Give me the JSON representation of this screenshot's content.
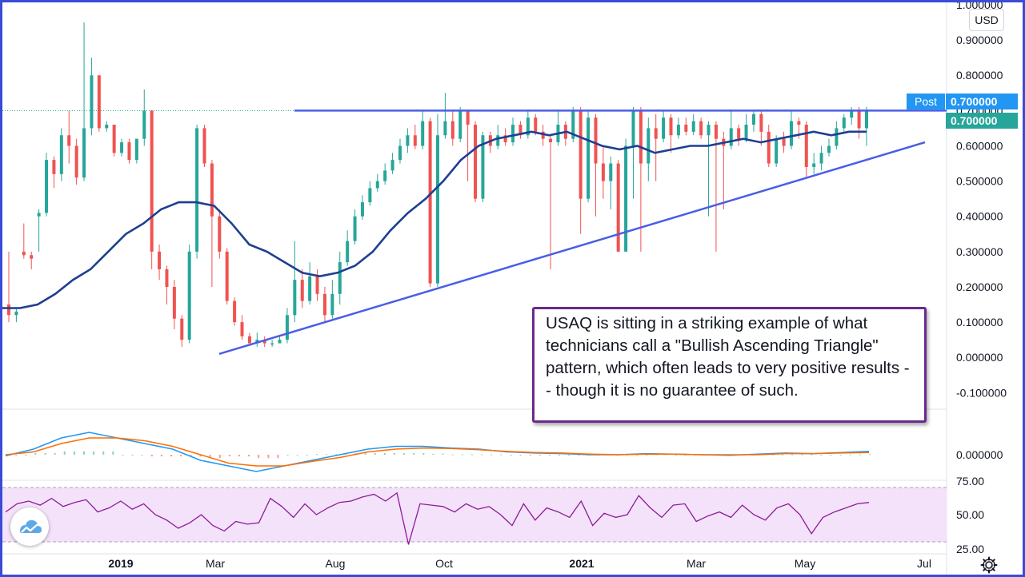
{
  "header": {
    "currency_button": "USD",
    "post_label": "Post",
    "post_price": "0.700000",
    "last_price": "0.700000"
  },
  "annotation": {
    "text": "USAQ is sitting in a striking example of what technicians call a \"Bullish Ascending Triangle\" pattern, which often leads to very positive results -- though it is no guarantee of such."
  },
  "icons": {
    "logo": "tradingview-cloud-logo",
    "settings": "gear-icon"
  },
  "colors": {
    "frame": "#3a4bd8",
    "up_candle": "#26a69a",
    "down_candle": "#ef5350",
    "moving_average": "#1e3f91",
    "trendline": "#4a5ee8",
    "macd_line": "#2196f3",
    "signal_line": "#ff6d00",
    "rsi_line": "#8e1a99",
    "rsi_band": "#f3e2f9"
  },
  "chart_data": [
    {
      "type": "candlestick",
      "title": "",
      "ylim": [
        -0.14,
        1.0
      ],
      "y_ticks": [
        "1.000000",
        "0.900000",
        "0.800000",
        "0.700000",
        "0.600000",
        "0.500000",
        "0.400000",
        "0.300000",
        "0.200000",
        "0.100000",
        "0.000000",
        "-0.100000"
      ],
      "x_ticks": [
        {
          "label": "2019",
          "bold": true
        },
        {
          "label": "Mar",
          "bold": false
        },
        {
          "label": "Aug",
          "bold": false
        },
        {
          "label": "Oct",
          "bold": false
        },
        {
          "label": "2021",
          "bold": true
        },
        {
          "label": "Mar",
          "bold": false
        },
        {
          "label": "May",
          "bold": false
        },
        {
          "label": "Jul",
          "bold": false
        }
      ],
      "resistance_level": 0.7,
      "support_trendline": {
        "start": 0.01,
        "end": 0.61
      },
      "last_price": 0.7,
      "candles": [
        [
          0.15,
          0.12,
          0.3,
          0.1
        ],
        [
          0.12,
          0.13,
          0.14,
          0.1
        ],
        [
          0.3,
          0.29,
          0.38,
          0.28
        ],
        [
          0.29,
          0.28,
          0.3,
          0.25
        ],
        [
          0.4,
          0.41,
          0.42,
          0.3
        ],
        [
          0.41,
          0.56,
          0.58,
          0.4
        ],
        [
          0.56,
          0.52,
          0.57,
          0.48
        ],
        [
          0.52,
          0.63,
          0.65,
          0.5
        ],
        [
          0.63,
          0.6,
          0.7,
          0.55
        ],
        [
          0.6,
          0.51,
          0.62,
          0.49
        ],
        [
          0.51,
          0.65,
          0.95,
          0.5
        ],
        [
          0.65,
          0.8,
          0.85,
          0.63
        ],
        [
          0.8,
          0.65,
          0.8,
          0.64
        ],
        [
          0.65,
          0.66,
          0.67,
          0.64
        ],
        [
          0.66,
          0.58,
          0.66,
          0.57
        ],
        [
          0.58,
          0.61,
          0.62,
          0.57
        ],
        [
          0.61,
          0.56,
          0.62,
          0.55
        ],
        [
          0.56,
          0.62,
          0.62,
          0.55
        ],
        [
          0.62,
          0.7,
          0.76,
          0.6
        ],
        [
          0.7,
          0.3,
          0.7,
          0.25
        ],
        [
          0.3,
          0.25,
          0.32,
          0.22
        ],
        [
          0.25,
          0.2,
          0.26,
          0.15
        ],
        [
          0.2,
          0.11,
          0.22,
          0.08
        ],
        [
          0.11,
          0.05,
          0.12,
          0.03
        ],
        [
          0.05,
          0.3,
          0.32,
          0.04
        ],
        [
          0.3,
          0.65,
          0.66,
          0.28
        ],
        [
          0.65,
          0.55,
          0.66,
          0.54
        ],
        [
          0.55,
          0.4,
          0.56,
          0.2
        ],
        [
          0.4,
          0.3,
          0.42,
          0.28
        ],
        [
          0.3,
          0.16,
          0.31,
          0.15
        ],
        [
          0.16,
          0.1,
          0.17,
          0.09
        ],
        [
          0.1,
          0.06,
          0.12,
          0.05
        ],
        [
          0.06,
          0.04,
          0.07,
          0.04
        ],
        [
          0.04,
          0.05,
          0.07,
          0.03
        ],
        [
          0.05,
          0.04,
          0.06,
          0.03
        ],
        [
          0.04,
          0.04,
          0.05,
          0.03
        ],
        [
          0.04,
          0.05,
          0.06,
          0.04
        ],
        [
          0.05,
          0.12,
          0.14,
          0.04
        ],
        [
          0.12,
          0.22,
          0.33,
          0.1
        ],
        [
          0.22,
          0.16,
          0.25,
          0.14
        ],
        [
          0.16,
          0.23,
          0.27,
          0.15
        ],
        [
          0.23,
          0.18,
          0.25,
          0.16
        ],
        [
          0.18,
          0.12,
          0.2,
          0.1
        ],
        [
          0.12,
          0.18,
          0.22,
          0.11
        ],
        [
          0.18,
          0.27,
          0.3,
          0.15
        ],
        [
          0.27,
          0.33,
          0.36,
          0.26
        ],
        [
          0.33,
          0.4,
          0.42,
          0.32
        ],
        [
          0.4,
          0.44,
          0.46,
          0.39
        ],
        [
          0.44,
          0.48,
          0.5,
          0.43
        ],
        [
          0.48,
          0.5,
          0.52,
          0.47
        ],
        [
          0.5,
          0.53,
          0.55,
          0.49
        ],
        [
          0.53,
          0.56,
          0.58,
          0.52
        ],
        [
          0.56,
          0.6,
          0.62,
          0.55
        ],
        [
          0.6,
          0.63,
          0.65,
          0.58
        ],
        [
          0.63,
          0.6,
          0.66,
          0.59
        ],
        [
          0.6,
          0.67,
          0.7,
          0.59
        ],
        [
          0.67,
          0.21,
          0.68,
          0.2
        ],
        [
          0.21,
          0.63,
          0.69,
          0.2
        ],
        [
          0.63,
          0.67,
          0.75,
          0.62
        ],
        [
          0.67,
          0.62,
          0.7,
          0.6
        ],
        [
          0.62,
          0.7,
          0.71,
          0.61
        ],
        [
          0.7,
          0.66,
          0.7,
          0.5
        ],
        [
          0.66,
          0.45,
          0.67,
          0.44
        ],
        [
          0.45,
          0.63,
          0.64,
          0.44
        ],
        [
          0.63,
          0.6,
          0.64,
          0.58
        ],
        [
          0.6,
          0.63,
          0.66,
          0.59
        ],
        [
          0.63,
          0.61,
          0.65,
          0.6
        ],
        [
          0.61,
          0.66,
          0.68,
          0.6
        ],
        [
          0.66,
          0.63,
          0.67,
          0.62
        ],
        [
          0.63,
          0.68,
          0.7,
          0.62
        ],
        [
          0.68,
          0.64,
          0.69,
          0.63
        ],
        [
          0.64,
          0.62,
          0.66,
          0.6
        ],
        [
          0.62,
          0.61,
          0.63,
          0.25
        ],
        [
          0.61,
          0.66,
          0.7,
          0.6
        ],
        [
          0.66,
          0.62,
          0.67,
          0.6
        ],
        [
          0.62,
          0.7,
          0.71,
          0.61
        ],
        [
          0.7,
          0.45,
          0.71,
          0.35
        ],
        [
          0.45,
          0.68,
          0.7,
          0.44
        ],
        [
          0.68,
          0.55,
          0.69,
          0.4
        ],
        [
          0.55,
          0.5,
          0.6,
          0.45
        ],
        [
          0.5,
          0.55,
          0.57,
          0.42
        ],
        [
          0.55,
          0.3,
          0.56,
          0.3
        ],
        [
          0.3,
          0.6,
          0.62,
          0.3
        ],
        [
          0.6,
          0.7,
          0.71,
          0.45
        ],
        [
          0.7,
          0.55,
          0.71,
          0.3
        ],
        [
          0.55,
          0.65,
          0.68,
          0.5
        ],
        [
          0.65,
          0.62,
          0.69,
          0.5
        ],
        [
          0.62,
          0.68,
          0.7,
          0.61
        ],
        [
          0.68,
          0.63,
          0.69,
          0.58
        ],
        [
          0.63,
          0.66,
          0.68,
          0.62
        ],
        [
          0.66,
          0.64,
          0.68,
          0.63
        ],
        [
          0.64,
          0.67,
          0.69,
          0.63
        ],
        [
          0.67,
          0.63,
          0.68,
          0.62
        ],
        [
          0.63,
          0.66,
          0.67,
          0.4
        ],
        [
          0.66,
          0.62,
          0.67,
          0.3
        ],
        [
          0.62,
          0.6,
          0.64,
          0.42
        ],
        [
          0.6,
          0.65,
          0.7,
          0.59
        ],
        [
          0.65,
          0.62,
          0.66,
          0.6
        ],
        [
          0.62,
          0.66,
          0.69,
          0.61
        ],
        [
          0.66,
          0.69,
          0.7,
          0.64
        ],
        [
          0.69,
          0.64,
          0.7,
          0.6
        ],
        [
          0.64,
          0.55,
          0.66,
          0.54
        ],
        [
          0.55,
          0.62,
          0.63,
          0.54
        ],
        [
          0.62,
          0.6,
          0.64,
          0.58
        ],
        [
          0.6,
          0.67,
          0.7,
          0.59
        ],
        [
          0.67,
          0.66,
          0.68,
          0.62
        ],
        [
          0.66,
          0.54,
          0.67,
          0.51
        ],
        [
          0.54,
          0.55,
          0.58,
          0.52
        ],
        [
          0.55,
          0.58,
          0.6,
          0.53
        ],
        [
          0.58,
          0.6,
          0.62,
          0.57
        ],
        [
          0.6,
          0.65,
          0.67,
          0.59
        ],
        [
          0.65,
          0.68,
          0.69,
          0.64
        ],
        [
          0.68,
          0.7,
          0.71,
          0.66
        ],
        [
          0.7,
          0.65,
          0.71,
          0.62
        ],
        [
          0.65,
          0.7,
          0.71,
          0.6
        ]
      ],
      "moving_average": [
        0.14,
        0.14,
        0.15,
        0.18,
        0.22,
        0.25,
        0.3,
        0.35,
        0.38,
        0.42,
        0.44,
        0.44,
        0.43,
        0.38,
        0.32,
        0.3,
        0.27,
        0.24,
        0.23,
        0.24,
        0.26,
        0.3,
        0.36,
        0.41,
        0.45,
        0.5,
        0.56,
        0.6,
        0.62,
        0.63,
        0.64,
        0.63,
        0.64,
        0.62,
        0.6,
        0.59,
        0.6,
        0.58,
        0.59,
        0.6,
        0.6,
        0.61,
        0.62,
        0.61,
        0.62,
        0.63,
        0.64,
        0.63,
        0.64,
        0.64
      ]
    },
    {
      "type": "line",
      "title": "",
      "y_ticks": [
        "0.000000"
      ],
      "series": [
        {
          "values": [
            -0.002,
            0.01,
            0.03,
            0.04,
            0.03,
            0.02,
            0.01,
            -0.01,
            -0.02,
            -0.03,
            -0.02,
            -0.01,
            0.0,
            0.01,
            0.015,
            0.015,
            0.012,
            0.01,
            0.005,
            0.003,
            0.002,
            0.0,
            0.0,
            0.002,
            0.001,
            0.0,
            -0.001,
            0.001,
            0.003,
            0.002,
            0.004,
            0.006
          ]
        },
        {
          "values": [
            0.0,
            0.005,
            0.02,
            0.03,
            0.03,
            0.025,
            0.015,
            0.0,
            -0.015,
            -0.02,
            -0.02,
            -0.012,
            -0.005,
            0.005,
            0.01,
            0.012,
            0.011,
            0.009,
            0.006,
            0.004,
            0.003,
            0.001,
            0.0,
            0.001,
            0.001,
            0.0,
            0.0,
            0.0,
            0.002,
            0.002,
            0.003,
            0.004
          ]
        }
      ]
    },
    {
      "type": "line",
      "title": "",
      "y_ticks": [
        "75.00",
        "50.00",
        "25.00"
      ],
      "series": [
        {
          "values": [
            52,
            58,
            60,
            57,
            62,
            56,
            59,
            61,
            52,
            55,
            60,
            54,
            58,
            50,
            46,
            40,
            44,
            50,
            42,
            38,
            45,
            43,
            44,
            62,
            56,
            48,
            58,
            50,
            55,
            59,
            60,
            63,
            65,
            60,
            66,
            28,
            58,
            57,
            56,
            52,
            58,
            54,
            56,
            50,
            42,
            58,
            46,
            55,
            52,
            48,
            60,
            42,
            51,
            48,
            50,
            64,
            55,
            48,
            57,
            58,
            45,
            49,
            52,
            48,
            57,
            50,
            46,
            55,
            58,
            50,
            36,
            48,
            52,
            55,
            58,
            59
          ]
        }
      ]
    }
  ]
}
